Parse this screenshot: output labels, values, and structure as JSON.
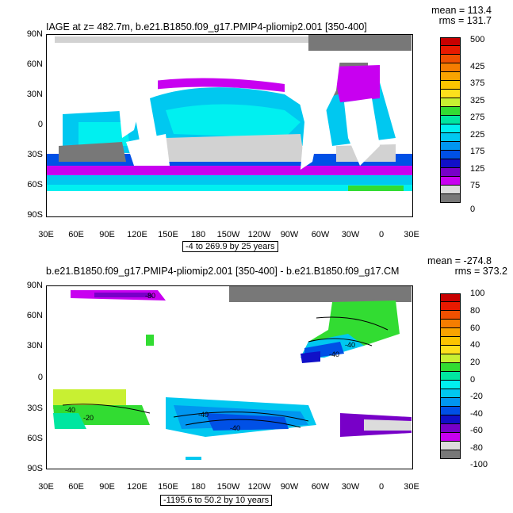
{
  "top": {
    "title": "IAGE at z= 482.7m, b.e21.B1850.f09_g17.PMIP4-pliomip2.001 [350-400]",
    "mean": "mean = 113.4",
    "rms": "rms = 131.7",
    "range": "-4 to 269.9 by 25 years",
    "lat_labels": [
      "90N",
      "60N",
      "30N",
      "0",
      "30S",
      "60S",
      "90S"
    ],
    "lon_labels": [
      "30E",
      "60E",
      "90E",
      "120E",
      "150E",
      "180",
      "150W",
      "120W",
      "90W",
      "60W",
      "30W",
      "0",
      "30E"
    ],
    "colorbar_labels": [
      "500",
      "425",
      "375",
      "325",
      "275",
      "225",
      "175",
      "125",
      "75",
      "0"
    ],
    "colorbar_colors": [
      "#c80000",
      "#e81a00",
      "#f05000",
      "#f57d00",
      "#f9a300",
      "#fbc400",
      "#fde01c",
      "#c8f032",
      "#32dc32",
      "#00e6a0",
      "#00f0f0",
      "#00c8f0",
      "#0096f0",
      "#0050e6",
      "#1010c8",
      "#7800c8",
      "#c800f0",
      "#dcdcdc",
      "#787878"
    ]
  },
  "bottom": {
    "title": "b.e21.B1850.f09_g17.PMIP4-pliomip2.001 [350-400] - b.e21.B1850.f09_g17.CM",
    "mean": "mean = -274.8",
    "rms": "rms = 373.2",
    "range": "-1195.6 to 50.2 by 10 years",
    "lat_labels": [
      "90N",
      "60N",
      "30N",
      "0",
      "30S",
      "60S",
      "90S"
    ],
    "lon_labels": [
      "30E",
      "60E",
      "90E",
      "120E",
      "150E",
      "180",
      "150W",
      "120W",
      "90W",
      "60W",
      "30W",
      "0",
      "30E"
    ],
    "colorbar_labels": [
      "100",
      "80",
      "60",
      "40",
      "20",
      "0",
      "-20",
      "-40",
      "-60",
      "-80",
      "-100"
    ],
    "colorbar_colors": [
      "#c80000",
      "#e81a00",
      "#f05000",
      "#f57d00",
      "#f9a300",
      "#fbc400",
      "#fde01c",
      "#c8f032",
      "#32dc32",
      "#00e6a0",
      "#00f0f0",
      "#00c8f0",
      "#0096f0",
      "#0050e6",
      "#1010c8",
      "#7800c8",
      "#c800f0",
      "#dcdcdc",
      "#787878"
    ],
    "contour_labels": [
      "-80",
      "-40",
      "-40",
      "-20",
      "-40",
      "-40",
      "-40"
    ]
  }
}
